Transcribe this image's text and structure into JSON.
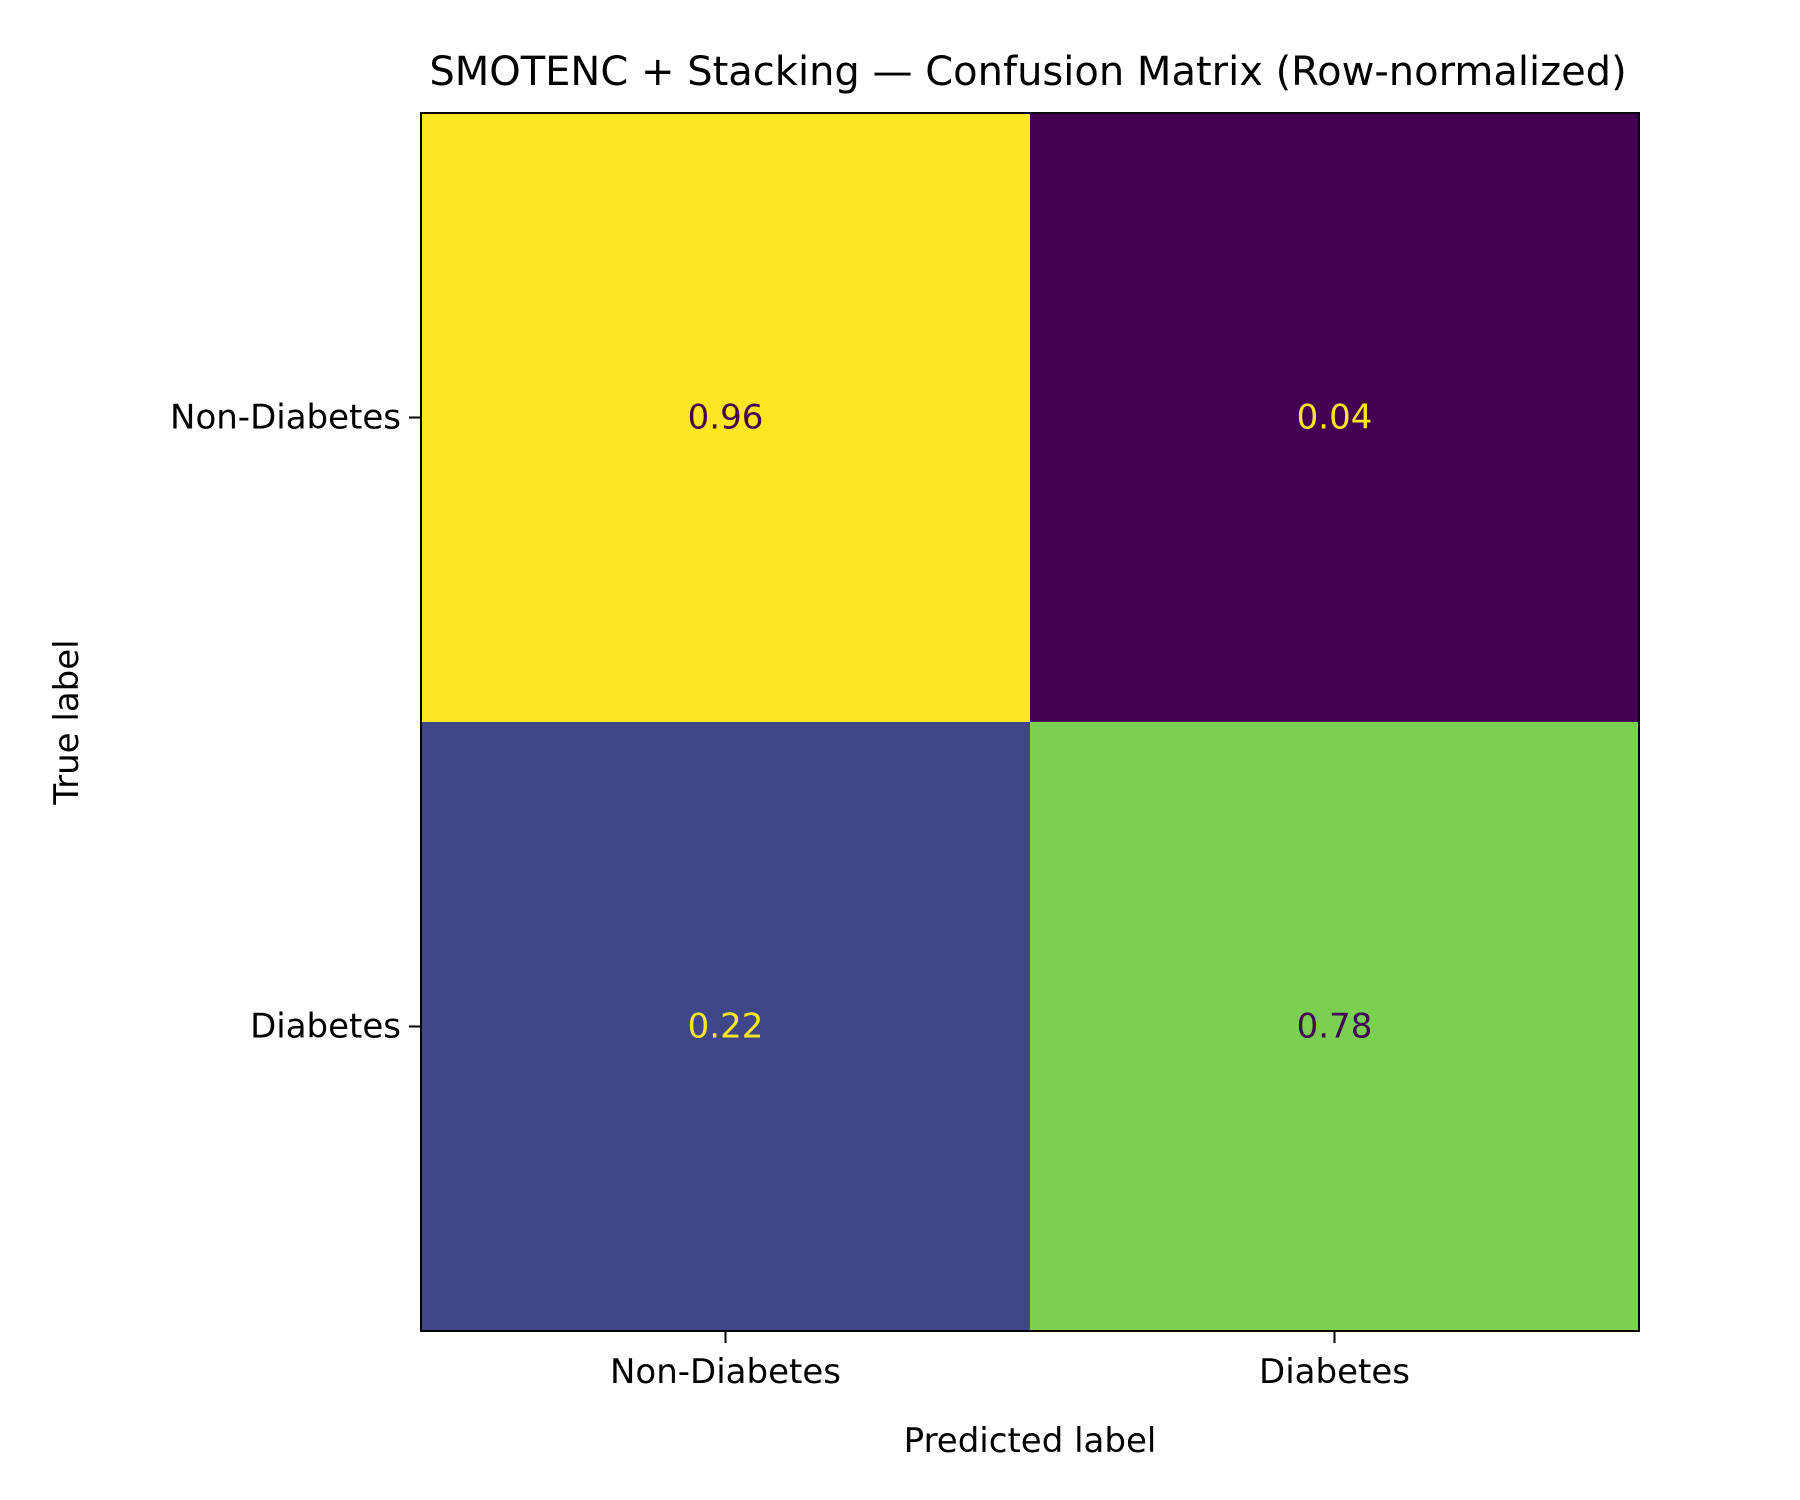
{
  "chart_data": {
    "type": "heatmap",
    "title": "SMOTENC + Stacking — Confusion Matrix (Row-normalized)",
    "xlabel": "Predicted label",
    "ylabel": "True label",
    "x_categories": [
      "Non-Diabetes",
      "Diabetes"
    ],
    "y_categories": [
      "Non-Diabetes",
      "Diabetes"
    ],
    "values": [
      [
        0.96,
        0.04
      ],
      [
        0.22,
        0.78
      ]
    ],
    "value_labels": [
      [
        "0.96",
        "0.04"
      ],
      [
        "0.22",
        "0.78"
      ]
    ],
    "cell_colors": [
      [
        "#fde725",
        "#440154"
      ],
      [
        "#3f4788",
        "#7ad151"
      ]
    ],
    "text_colors": [
      [
        "#440154",
        "#fde725"
      ],
      [
        "#fde725",
        "#440154"
      ]
    ],
    "colormap": "viridis",
    "colorbar": false,
    "grid": false
  }
}
